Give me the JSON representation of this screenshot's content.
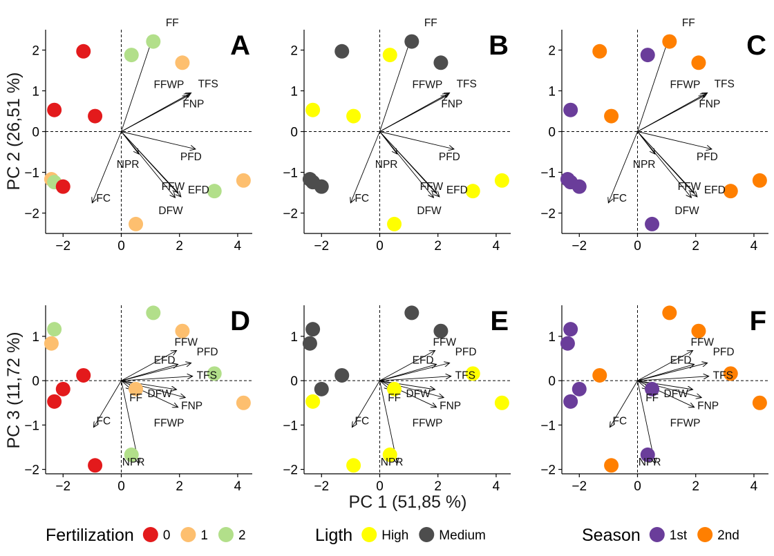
{
  "figure": {
    "xlabel": "PC 1 (51,85 %)",
    "ylabel_top": "PC 2 (26,51 %)",
    "ylabel_bottom": "PC 3 (11,72 %)"
  },
  "colors": {
    "fert_0": "#e31a1c",
    "fert_1": "#fdbf6f",
    "fert_2": "#b2df8a",
    "light_high": "#ffff00",
    "light_medium": "#4d4d4d",
    "season_1st": "#6a3d9a",
    "season_2nd": "#ff7f00"
  },
  "legends": [
    {
      "title": "Fertilization",
      "entries": [
        {
          "label": "0",
          "color": "#e31a1c"
        },
        {
          "label": "1",
          "color": "#fdbf6f"
        },
        {
          "label": "2",
          "color": "#b2df8a"
        }
      ]
    },
    {
      "title": "Ligth",
      "entries": [
        {
          "label": "High",
          "color": "#ffff00"
        },
        {
          "label": "Medium",
          "color": "#4d4d4d"
        }
      ]
    },
    {
      "title": "Season",
      "entries": [
        {
          "label": "1st",
          "color": "#6a3d9a"
        },
        {
          "label": "2nd",
          "color": "#ff7f00"
        }
      ]
    }
  ],
  "chart_data": {
    "type": "scatter",
    "xlim": [
      -2.6,
      4.5
    ],
    "xticks": [
      -2,
      0,
      2,
      4
    ],
    "top_row": {
      "ylim": [
        -2.5,
        2.5
      ],
      "yticks": [
        -2,
        -1,
        0,
        1,
        2
      ],
      "points": [
        {
          "x": -1.3,
          "y": 1.97,
          "fert": "0",
          "light": "Medium",
          "season": "2nd"
        },
        {
          "x": 0.35,
          "y": 1.88,
          "fert": "2",
          "light": "High",
          "season": "1st"
        },
        {
          "x": 1.1,
          "y": 2.21,
          "fert": "2",
          "light": "Medium",
          "season": "2nd"
        },
        {
          "x": 2.1,
          "y": 1.69,
          "fert": "1",
          "light": "Medium",
          "season": "2nd"
        },
        {
          "x": -2.3,
          "y": 0.53,
          "fert": "0",
          "light": "High",
          "season": "1st"
        },
        {
          "x": -0.9,
          "y": 0.38,
          "fert": "0",
          "light": "High",
          "season": "2nd"
        },
        {
          "x": -2.4,
          "y": -1.17,
          "fert": "1",
          "light": "Medium",
          "season": "1st"
        },
        {
          "x": -2.3,
          "y": -1.24,
          "fert": "2",
          "light": "Medium",
          "season": "1st"
        },
        {
          "x": -2.0,
          "y": -1.35,
          "fert": "0",
          "light": "Medium",
          "season": "1st"
        },
        {
          "x": 3.2,
          "y": -1.46,
          "fert": "2",
          "light": "High",
          "season": "2nd"
        },
        {
          "x": 4.2,
          "y": -1.2,
          "fert": "1",
          "light": "High",
          "season": "2nd"
        },
        {
          "x": 0.5,
          "y": -2.27,
          "fert": "1",
          "light": "High",
          "season": "1st"
        }
      ],
      "loadings": [
        {
          "label": "FF",
          "x": 1.1,
          "y": 2.35
        },
        {
          "label": "FFWP",
          "x": 2.35,
          "y": 0.93
        },
        {
          "label": "TFS",
          "x": 2.4,
          "y": 0.95
        },
        {
          "label": "FNP",
          "x": 2.3,
          "y": 0.88
        },
        {
          "label": "PFD",
          "x": 2.55,
          "y": -0.43
        },
        {
          "label": "NPR",
          "x": 0.6,
          "y": -0.55
        },
        {
          "label": "FFW",
          "x": 1.95,
          "y": -1.5
        },
        {
          "label": "EFD",
          "x": 2.05,
          "y": -1.6
        },
        {
          "label": "DFW",
          "x": 1.85,
          "y": -1.62
        },
        {
          "label": "FC",
          "x": -1.0,
          "y": -1.75
        }
      ]
    },
    "bottom_row": {
      "ylim": [
        -2.1,
        1.7
      ],
      "yticks": [
        -2,
        -1,
        0,
        1
      ],
      "points": [
        {
          "x": 1.1,
          "y": 1.53,
          "fert": "2",
          "light": "Medium",
          "season": "2nd"
        },
        {
          "x": -2.3,
          "y": 1.16,
          "fert": "2",
          "light": "Medium",
          "season": "1st"
        },
        {
          "x": 2.1,
          "y": 1.12,
          "fert": "1",
          "light": "Medium",
          "season": "2nd"
        },
        {
          "x": -2.4,
          "y": 0.84,
          "fert": "1",
          "light": "Medium",
          "season": "1st"
        },
        {
          "x": -1.3,
          "y": 0.12,
          "fert": "0",
          "light": "Medium",
          "season": "2nd"
        },
        {
          "x": 3.2,
          "y": 0.16,
          "fert": "2",
          "light": "High",
          "season": "2nd"
        },
        {
          "x": -2.0,
          "y": -0.19,
          "fert": "0",
          "light": "Medium",
          "season": "1st"
        },
        {
          "x": 0.5,
          "y": -0.19,
          "fert": "1",
          "light": "High",
          "season": "1st"
        },
        {
          "x": -2.3,
          "y": -0.47,
          "fert": "0",
          "light": "High",
          "season": "1st"
        },
        {
          "x": 4.2,
          "y": -0.5,
          "fert": "1",
          "light": "High",
          "season": "2nd"
        },
        {
          "x": 0.35,
          "y": -1.67,
          "fert": "2",
          "light": "High",
          "season": "1st"
        },
        {
          "x": -0.9,
          "y": -1.91,
          "fert": "0",
          "light": "High",
          "season": "2nd"
        }
      ],
      "loadings": [
        {
          "label": "FFW",
          "x": 1.9,
          "y": 0.68
        },
        {
          "label": "EFD",
          "x": 1.95,
          "y": 0.37
        },
        {
          "label": "PFD",
          "x": 2.4,
          "y": 0.4
        },
        {
          "label": "TFS",
          "x": 2.45,
          "y": 0.1
        },
        {
          "label": "DFW",
          "x": 1.9,
          "y": -0.2
        },
        {
          "label": "FNP",
          "x": 2.2,
          "y": -0.38
        },
        {
          "label": "FFWP",
          "x": 1.95,
          "y": -0.6
        },
        {
          "label": "FF",
          "x": 0.35,
          "y": -0.2
        },
        {
          "label": "FC",
          "x": -0.95,
          "y": -1.05
        },
        {
          "label": "NPR",
          "x": 0.6,
          "y": -1.87
        }
      ]
    },
    "panels": [
      {
        "letter": "A",
        "row": "top",
        "col": 0,
        "color_by": "fert"
      },
      {
        "letter": "B",
        "row": "top",
        "col": 1,
        "color_by": "light"
      },
      {
        "letter": "C",
        "row": "top",
        "col": 2,
        "color_by": "season"
      },
      {
        "letter": "D",
        "row": "bottom",
        "col": 0,
        "color_by": "fert"
      },
      {
        "letter": "E",
        "row": "bottom",
        "col": 1,
        "color_by": "light"
      },
      {
        "letter": "F",
        "row": "bottom",
        "col": 2,
        "color_by": "season"
      }
    ]
  }
}
